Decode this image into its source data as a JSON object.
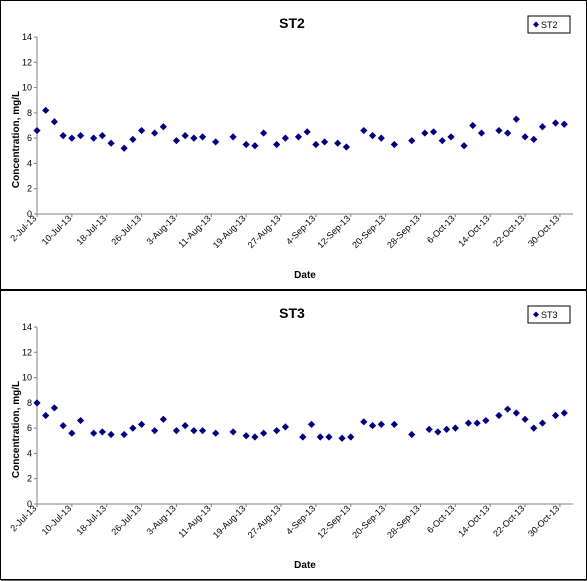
{
  "chart_data": [
    {
      "type": "scatter",
      "title": "ST2",
      "xlabel": "Date",
      "ylabel": "Concentration, mg/L",
      "ylim": [
        0,
        14
      ],
      "yticks": [
        "0",
        "2",
        "4",
        "6",
        "8",
        "10",
        "12",
        "14"
      ],
      "xlim": [
        "2-Jul-13",
        "2-Nov-13"
      ],
      "xticks": [
        "2-Jul-13",
        "10-Jul-13",
        "18-Jul-13",
        "26-Jul-13",
        "3-Aug-13",
        "11-Aug-13",
        "19-Aug-13",
        "27-Aug-13",
        "4-Sep-13",
        "12-Sep-13",
        "20-Sep-13",
        "28-Sep-13",
        "6-Oct-13",
        "14-Oct-13",
        "22-Oct-13",
        "30-Oct-13"
      ],
      "grid": false,
      "legend": "top-right",
      "series": [
        {
          "name": "ST2",
          "color": "#000080",
          "marker": "diamond",
          "points": [
            {
              "x": "2-Jul-13",
              "y": 6.6
            },
            {
              "x": "4-Jul-13",
              "y": 8.2
            },
            {
              "x": "6-Jul-13",
              "y": 7.3
            },
            {
              "x": "8-Jul-13",
              "y": 6.2
            },
            {
              "x": "10-Jul-13",
              "y": 6.0
            },
            {
              "x": "12-Jul-13",
              "y": 6.2
            },
            {
              "x": "15-Jul-13",
              "y": 6.0
            },
            {
              "x": "17-Jul-13",
              "y": 6.2
            },
            {
              "x": "19-Jul-13",
              "y": 5.6
            },
            {
              "x": "22-Jul-13",
              "y": 5.2
            },
            {
              "x": "24-Jul-13",
              "y": 5.9
            },
            {
              "x": "26-Jul-13",
              "y": 6.6
            },
            {
              "x": "29-Jul-13",
              "y": 6.4
            },
            {
              "x": "31-Jul-13",
              "y": 6.9
            },
            {
              "x": "3-Aug-13",
              "y": 5.8
            },
            {
              "x": "5-Aug-13",
              "y": 6.2
            },
            {
              "x": "7-Aug-13",
              "y": 6.0
            },
            {
              "x": "9-Aug-13",
              "y": 6.1
            },
            {
              "x": "12-Aug-13",
              "y": 5.7
            },
            {
              "x": "16-Aug-13",
              "y": 6.1
            },
            {
              "x": "19-Aug-13",
              "y": 5.5
            },
            {
              "x": "21-Aug-13",
              "y": 5.4
            },
            {
              "x": "23-Aug-13",
              "y": 6.4
            },
            {
              "x": "26-Aug-13",
              "y": 5.5
            },
            {
              "x": "28-Aug-13",
              "y": 6.0
            },
            {
              "x": "31-Aug-13",
              "y": 6.1
            },
            {
              "x": "2-Sep-13",
              "y": 6.5
            },
            {
              "x": "4-Sep-13",
              "y": 5.5
            },
            {
              "x": "6-Sep-13",
              "y": 5.7
            },
            {
              "x": "9-Sep-13",
              "y": 5.6
            },
            {
              "x": "11-Sep-13",
              "y": 5.3
            },
            {
              "x": "15-Sep-13",
              "y": 6.6
            },
            {
              "x": "17-Sep-13",
              "y": 6.2
            },
            {
              "x": "19-Sep-13",
              "y": 6.0
            },
            {
              "x": "22-Sep-13",
              "y": 5.5
            },
            {
              "x": "26-Sep-13",
              "y": 5.8
            },
            {
              "x": "29-Sep-13",
              "y": 6.4
            },
            {
              "x": "1-Oct-13",
              "y": 6.5
            },
            {
              "x": "3-Oct-13",
              "y": 5.8
            },
            {
              "x": "5-Oct-13",
              "y": 6.1
            },
            {
              "x": "8-Oct-13",
              "y": 5.4
            },
            {
              "x": "10-Oct-13",
              "y": 7.0
            },
            {
              "x": "12-Oct-13",
              "y": 6.4
            },
            {
              "x": "16-Oct-13",
              "y": 6.6
            },
            {
              "x": "18-Oct-13",
              "y": 6.4
            },
            {
              "x": "20-Oct-13",
              "y": 7.5
            },
            {
              "x": "22-Oct-13",
              "y": 6.1
            },
            {
              "x": "24-Oct-13",
              "y": 5.9
            },
            {
              "x": "26-Oct-13",
              "y": 6.9
            },
            {
              "x": "29-Oct-13",
              "y": 7.2
            },
            {
              "x": "31-Oct-13",
              "y": 7.1
            }
          ]
        }
      ]
    },
    {
      "type": "scatter",
      "title": "ST3",
      "xlabel": "Date",
      "ylabel": "Concentration, mg/L",
      "ylim": [
        0,
        14
      ],
      "yticks": [
        "0",
        "2",
        "4",
        "6",
        "8",
        "10",
        "12",
        "14"
      ],
      "xlim": [
        "2-Jul-13",
        "2-Nov-13"
      ],
      "xticks": [
        "2-Jul-13",
        "10-Jul-13",
        "18-Jul-13",
        "26-Jul-13",
        "3-Aug-13",
        "11-Aug-13",
        "19-Aug-13",
        "27-Aug-13",
        "4-Sep-13",
        "12-Sep-13",
        "20-Sep-13",
        "28-Sep-13",
        "6-Oct-13",
        "14-Oct-13",
        "22-Oct-13",
        "30-Oct-13"
      ],
      "grid": false,
      "legend": "top-right",
      "series": [
        {
          "name": "ST3",
          "color": "#000080",
          "marker": "diamond",
          "points": [
            {
              "x": "2-Jul-13",
              "y": 8.0
            },
            {
              "x": "4-Jul-13",
              "y": 7.0
            },
            {
              "x": "6-Jul-13",
              "y": 7.6
            },
            {
              "x": "8-Jul-13",
              "y": 6.2
            },
            {
              "x": "10-Jul-13",
              "y": 5.6
            },
            {
              "x": "12-Jul-13",
              "y": 6.6
            },
            {
              "x": "15-Jul-13",
              "y": 5.6
            },
            {
              "x": "17-Jul-13",
              "y": 5.7
            },
            {
              "x": "19-Jul-13",
              "y": 5.5
            },
            {
              "x": "22-Jul-13",
              "y": 5.5
            },
            {
              "x": "24-Jul-13",
              "y": 6.0
            },
            {
              "x": "26-Jul-13",
              "y": 6.3
            },
            {
              "x": "29-Jul-13",
              "y": 5.8
            },
            {
              "x": "31-Jul-13",
              "y": 6.7
            },
            {
              "x": "3-Aug-13",
              "y": 5.8
            },
            {
              "x": "5-Aug-13",
              "y": 6.2
            },
            {
              "x": "7-Aug-13",
              "y": 5.8
            },
            {
              "x": "9-Aug-13",
              "y": 5.8
            },
            {
              "x": "12-Aug-13",
              "y": 5.6
            },
            {
              "x": "16-Aug-13",
              "y": 5.7
            },
            {
              "x": "19-Aug-13",
              "y": 5.4
            },
            {
              "x": "21-Aug-13",
              "y": 5.3
            },
            {
              "x": "23-Aug-13",
              "y": 5.6
            },
            {
              "x": "26-Aug-13",
              "y": 5.8
            },
            {
              "x": "28-Aug-13",
              "y": 6.1
            },
            {
              "x": "1-Sep-13",
              "y": 5.3
            },
            {
              "x": "3-Sep-13",
              "y": 6.3
            },
            {
              "x": "5-Sep-13",
              "y": 5.3
            },
            {
              "x": "7-Sep-13",
              "y": 5.3
            },
            {
              "x": "10-Sep-13",
              "y": 5.2
            },
            {
              "x": "12-Sep-13",
              "y": 5.3
            },
            {
              "x": "15-Sep-13",
              "y": 6.5
            },
            {
              "x": "17-Sep-13",
              "y": 6.2
            },
            {
              "x": "19-Sep-13",
              "y": 6.3
            },
            {
              "x": "22-Sep-13",
              "y": 6.3
            },
            {
              "x": "26-Sep-13",
              "y": 5.5
            },
            {
              "x": "30-Sep-13",
              "y": 5.9
            },
            {
              "x": "2-Oct-13",
              "y": 5.7
            },
            {
              "x": "4-Oct-13",
              "y": 5.9
            },
            {
              "x": "6-Oct-13",
              "y": 6.0
            },
            {
              "x": "9-Oct-13",
              "y": 6.4
            },
            {
              "x": "11-Oct-13",
              "y": 6.4
            },
            {
              "x": "13-Oct-13",
              "y": 6.6
            },
            {
              "x": "16-Oct-13",
              "y": 7.0
            },
            {
              "x": "18-Oct-13",
              "y": 7.5
            },
            {
              "x": "20-Oct-13",
              "y": 7.2
            },
            {
              "x": "22-Oct-13",
              "y": 6.7
            },
            {
              "x": "24-Oct-13",
              "y": 6.0
            },
            {
              "x": "26-Oct-13",
              "y": 6.4
            },
            {
              "x": "29-Oct-13",
              "y": 7.0
            },
            {
              "x": "31-Oct-13",
              "y": 7.2
            }
          ]
        }
      ]
    }
  ]
}
